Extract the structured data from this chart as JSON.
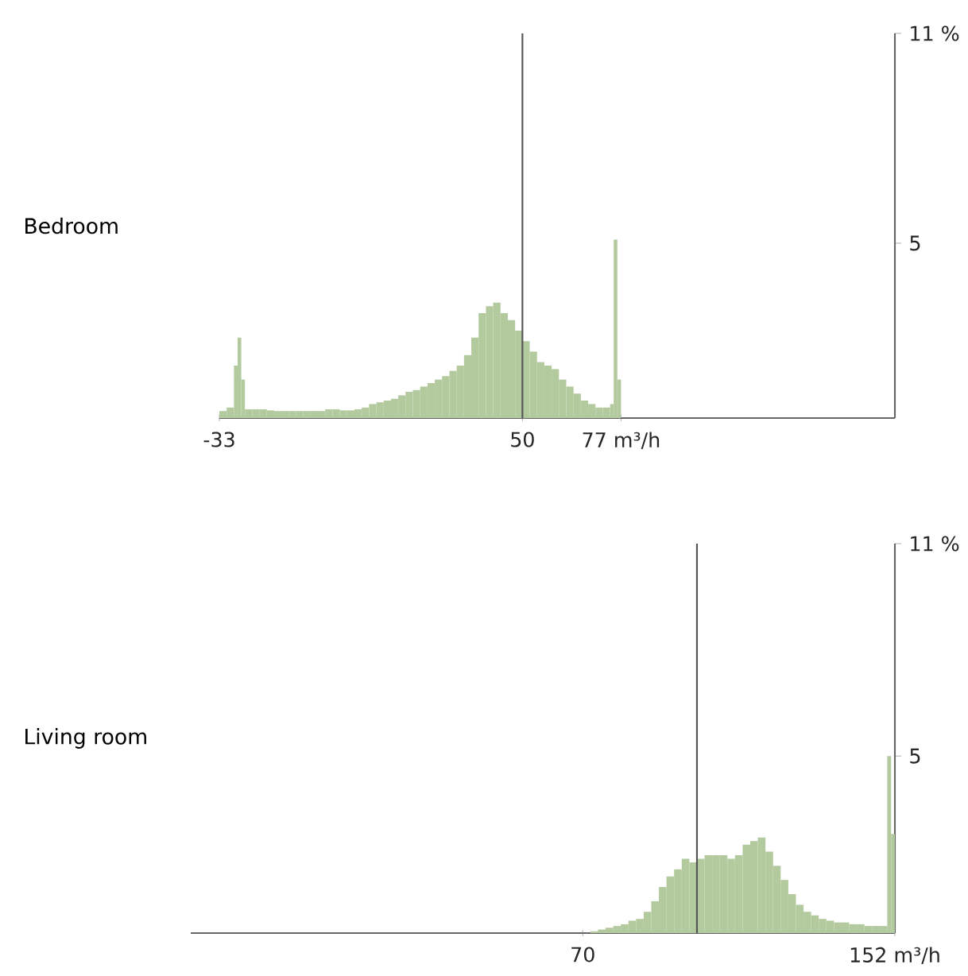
{
  "chart_data": [
    {
      "type": "histogram",
      "ylabel": "Bedroom",
      "color": "#b3c99e",
      "bins": [
        -33,
        -31,
        -29,
        -28,
        -27,
        -26,
        -24,
        -22,
        -20,
        -18,
        -16,
        -14,
        -12,
        -10,
        -8,
        -6,
        -4,
        -2,
        0,
        2,
        4,
        6,
        8,
        10,
        12,
        14,
        16,
        18,
        20,
        22,
        24,
        26,
        28,
        30,
        32,
        34,
        36,
        38,
        40,
        42,
        44,
        46,
        48,
        50,
        52,
        54,
        56,
        58,
        60,
        62,
        64,
        66,
        68,
        70,
        72,
        74,
        75,
        76,
        77
      ],
      "values": [
        0.2,
        0.3,
        1.5,
        2.3,
        1.1,
        0.25,
        0.25,
        0.25,
        0.22,
        0.2,
        0.2,
        0.2,
        0.2,
        0.2,
        0.2,
        0.2,
        0.25,
        0.25,
        0.22,
        0.22,
        0.25,
        0.3,
        0.4,
        0.45,
        0.5,
        0.55,
        0.65,
        0.75,
        0.8,
        0.9,
        1.0,
        1.1,
        1.2,
        1.35,
        1.5,
        1.8,
        2.3,
        3.0,
        3.2,
        3.3,
        3.0,
        2.8,
        2.5,
        2.2,
        1.9,
        1.6,
        1.5,
        1.4,
        1.1,
        0.9,
        0.7,
        0.5,
        0.4,
        0.3,
        0.3,
        0.4,
        5.1,
        1.1
      ],
      "xlim": [
        -33,
        152
      ],
      "ylim": [
        0,
        11
      ],
      "xticks": [
        -33,
        50,
        {
          "value": 77,
          "label": "77 m³/h"
        }
      ],
      "yticks": [
        5,
        {
          "value": 11,
          "label": "11 %"
        }
      ],
      "ref_lines": [
        {
          "axis": "x",
          "value": 50,
          "color": "#555555"
        }
      ]
    },
    {
      "type": "histogram",
      "ylabel": "Living room",
      "color": "#b3c99e",
      "bins": [
        72,
        74,
        76,
        78,
        80,
        82,
        84,
        86,
        88,
        90,
        92,
        94,
        96,
        98,
        100,
        102,
        104,
        106,
        108,
        110,
        112,
        114,
        116,
        118,
        120,
        122,
        124,
        126,
        128,
        130,
        132,
        134,
        136,
        138,
        140,
        142,
        144,
        146,
        148,
        150,
        151,
        152
      ],
      "values": [
        0.05,
        0.1,
        0.15,
        0.2,
        0.25,
        0.35,
        0.4,
        0.6,
        0.9,
        1.3,
        1.6,
        1.8,
        2.1,
        2.0,
        2.1,
        2.2,
        2.2,
        2.2,
        2.1,
        2.2,
        2.5,
        2.6,
        2.7,
        2.3,
        1.9,
        1.5,
        1.1,
        0.8,
        0.6,
        0.5,
        0.4,
        0.35,
        0.3,
        0.3,
        0.25,
        0.25,
        0.2,
        0.2,
        0.2,
        5.0,
        2.8
      ],
      "xlim": [
        -33,
        152
      ],
      "ylim": [
        0,
        11
      ],
      "xticks": [
        70,
        {
          "value": 152,
          "label": "152 m³/h"
        }
      ],
      "yticks": [
        5,
        {
          "value": 11,
          "label": "11 %"
        }
      ],
      "ref_lines": [
        {
          "axis": "x",
          "value": 100,
          "color": "#555555"
        }
      ]
    }
  ]
}
